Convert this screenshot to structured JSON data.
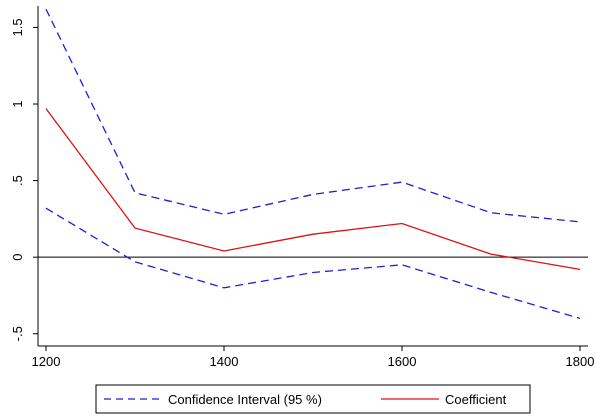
{
  "chart_data": {
    "type": "line",
    "title": "",
    "xlabel": "",
    "ylabel": "",
    "x": [
      1200,
      1300,
      1400,
      1500,
      1600,
      1700,
      1800
    ],
    "xticks": [
      1200,
      1400,
      1600,
      1800
    ],
    "xtick_labels": [
      "1200",
      "1400",
      "1600",
      "1800"
    ],
    "yticks": [
      -0.5,
      0,
      0.5,
      1,
      1.5
    ],
    "ytick_labels": [
      "-.5",
      "0",
      ".5",
      "1",
      "1.5"
    ],
    "xlim": [
      1200,
      1800
    ],
    "ylim": [
      -0.58,
      1.64
    ],
    "grid": false,
    "zero_line": true,
    "legend_position": "bottom",
    "series": [
      {
        "name": "Confidence Interval (95 %)",
        "role": "upper",
        "color": "#1f1fd6",
        "dash": "dashed",
        "values": [
          1.62,
          0.42,
          0.28,
          0.41,
          0.49,
          0.29,
          0.23
        ]
      },
      {
        "name": "Confidence Interval (95 %)",
        "role": "lower",
        "color": "#1f1fd6",
        "dash": "dashed",
        "values": [
          0.32,
          -0.03,
          -0.2,
          -0.1,
          -0.05,
          -0.23,
          -0.4
        ]
      },
      {
        "name": "Coefficient",
        "role": "point",
        "color": "#dd1111",
        "dash": "solid",
        "values": [
          0.97,
          0.19,
          0.04,
          0.15,
          0.22,
          0.02,
          -0.08
        ]
      }
    ],
    "legend": [
      {
        "label": "Confidence Interval (95 %)",
        "color": "#1f1fd6",
        "dash": "dashed"
      },
      {
        "label": "Coefficient",
        "color": "#dd1111",
        "dash": "solid"
      }
    ]
  }
}
